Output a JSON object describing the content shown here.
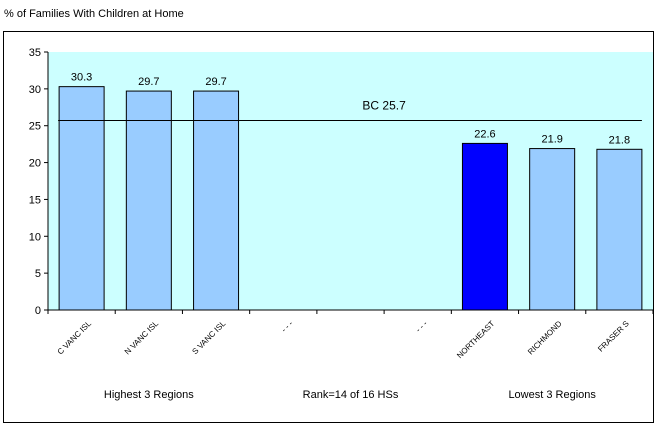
{
  "chart_data": {
    "type": "bar",
    "title": "% of Families With Children at Home",
    "categories": [
      "C VANC ISL",
      "N VANC ISL",
      "S VANC ISL",
      "- - -",
      "",
      "- - -",
      "NORTHEAST",
      "RICHMOND",
      "FRASER S"
    ],
    "values": [
      30.3,
      29.7,
      29.7,
      null,
      null,
      null,
      22.6,
      21.9,
      21.8
    ],
    "value_labels": [
      "30.3",
      "29.7",
      "29.7",
      "",
      "",
      "",
      "22.6",
      "21.9",
      "21.8"
    ],
    "highlight_index": 6,
    "reference_line": {
      "label": "BC 25.7",
      "value": 25.7
    },
    "ylim": [
      0,
      35
    ],
    "yticks": [
      "0",
      "5",
      "10",
      "15",
      "20",
      "25",
      "30",
      "35"
    ],
    "group_labels": [
      "Highest 3 Regions",
      "Rank=14 of 16 HSs",
      "Lowest 3 Regions"
    ],
    "colors": {
      "plot_background": "#ccffff",
      "bar": "#99ccff",
      "highlight_bar": "#0000ff",
      "line": "#000000"
    },
    "grid": false,
    "legend": "none"
  }
}
